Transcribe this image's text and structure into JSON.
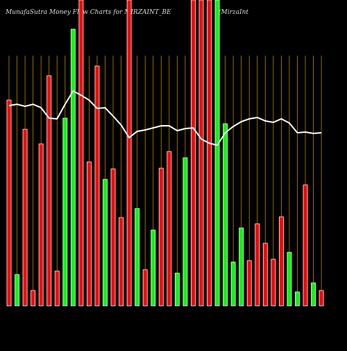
{
  "chart_data": {
    "type": "bar",
    "title": "MunafaSutra  Money Flow  Charts for MIRZAINT_BE",
    "subtitle": "(MirzaInt",
    "categories": [
      null,
      null,
      null,
      null,
      null,
      null,
      null,
      null,
      null,
      null,
      null,
      null,
      null,
      null,
      null,
      null,
      null,
      null,
      null,
      null,
      null,
      null,
      null,
      null,
      null,
      null,
      null,
      null,
      null,
      null,
      null,
      null,
      null,
      null,
      null,
      null,
      null,
      null,
      null,
      null
    ],
    "ylim": [
      0,
      440
    ],
    "series": [
      {
        "type": "bar",
        "values": [
          296,
          45,
          254,
          22,
          233,
          331,
          50,
          270,
          398,
          440,
          207,
          345,
          182,
          197,
          127,
          440,
          140,
          52,
          109,
          198,
          222,
          47,
          213,
          440,
          440,
          440,
          440,
          262,
          63,
          112,
          65,
          118,
          90,
          67,
          128,
          77,
          20,
          174,
          33,
          22
        ],
        "colors": [
          "#ff0000",
          "#00ff00",
          "#ff0000",
          "#ff0000",
          "#ff0000",
          "#ff0000",
          "#ff0000",
          "#00ff00",
          "#00ff00",
          "#ff0000",
          "#ff0000",
          "#ff0000",
          "#00ff00",
          "#ff0000",
          "#ff0000",
          "#ff0000",
          "#00ff00",
          "#ff0000",
          "#00ff00",
          "#ff0000",
          "#ff0000",
          "#00ff00",
          "#00ff00",
          "#ff0000",
          "#ff0000",
          "#ff0000",
          "#00ff00",
          "#00ff00",
          "#00ff00",
          "#00ff00",
          "#ff0000",
          "#ff0000",
          "#ff0000",
          "#ff0000",
          "#ff0000",
          "#00ff00",
          "#00ff00",
          "#ff0000",
          "#00ff00",
          "#ff0000"
        ]
      },
      {
        "type": "line",
        "color": "#ffffff",
        "values": [
          288,
          290,
          287,
          290,
          285,
          270,
          269,
          290,
          309,
          303,
          296,
          284,
          285,
          273,
          260,
          242,
          251,
          253,
          256,
          259,
          259,
          252,
          255,
          256,
          240,
          234,
          231,
          249,
          258,
          265,
          269,
          271,
          266,
          264,
          269,
          263,
          249,
          250,
          248,
          249
        ]
      }
    ],
    "grid_color": "#b8860b"
  }
}
